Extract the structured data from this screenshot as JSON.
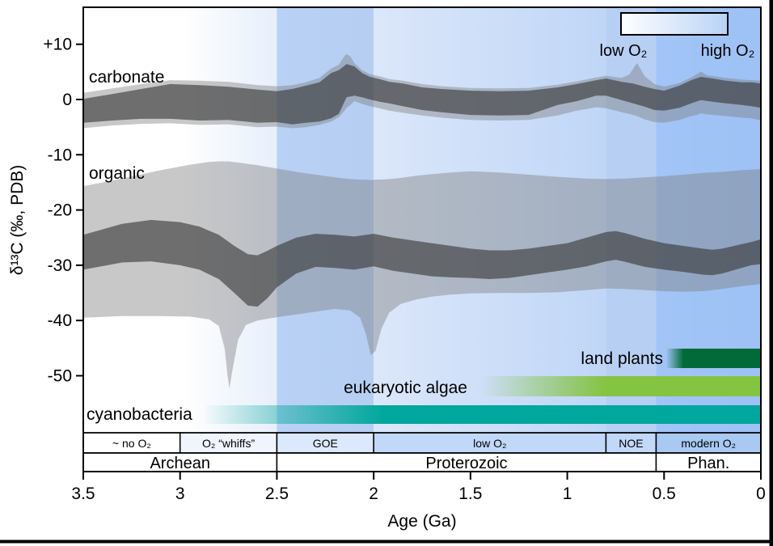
{
  "figure": {
    "y_axis_title": "δ¹³C (‰, PDB)",
    "x_axis_title": "Age (Ga)",
    "series_labels": {
      "carbonate": "carbonate",
      "organic": "organic"
    },
    "legend": {
      "low_label": "low O₂",
      "high_label": "high O₂",
      "gradient": [
        "#ffffff",
        "#b9d3f6"
      ]
    }
  },
  "colors": {
    "envelope_gray": "rgba(125,125,125,0.42)",
    "band_dark_gray": "rgba(55,55,55,0.62)",
    "frame": "#000000"
  },
  "chart_data": {
    "type": "area",
    "title": "",
    "xlabel": "Age (Ga)",
    "ylabel": "δ¹³C (‰, PDB)",
    "xlim": [
      3.5,
      0
    ],
    "ylim": [
      -67,
      17
    ],
    "grid": false,
    "x_ticks": [
      {
        "v": 3.5,
        "label": "3.5"
      },
      {
        "v": 3.0,
        "label": "3"
      },
      {
        "v": 2.5,
        "label": "2.5"
      },
      {
        "v": 2.0,
        "label": "2"
      },
      {
        "v": 1.5,
        "label": "1.5"
      },
      {
        "v": 1.0,
        "label": "1"
      },
      {
        "v": 0.5,
        "label": "0.5"
      },
      {
        "v": 0.0,
        "label": "0"
      }
    ],
    "y_ticks": [
      {
        "v": 10,
        "label": "+10"
      },
      {
        "v": 0,
        "label": "0"
      },
      {
        "v": -10,
        "label": "-10"
      },
      {
        "v": -20,
        "label": "-20"
      },
      {
        "v": -30,
        "label": "-30"
      },
      {
        "v": -40,
        "label": "-40"
      },
      {
        "v": -50,
        "label": "-50"
      }
    ],
    "background_zones": [
      {
        "name": "archean-anoxic",
        "from": 3.5,
        "to": 3.0,
        "c1": "#ffffff",
        "c2": "#ffffff"
      },
      {
        "name": "whiffs-gradient",
        "from": 3.0,
        "to": 2.5,
        "c1": "#ffffff",
        "c2": "#e7effb"
      },
      {
        "name": "goe-stripe",
        "from": 2.5,
        "to": 2.0,
        "c1": "#b8d1f4",
        "c2": "#b5cef2"
      },
      {
        "name": "mid-proterozoic",
        "from": 2.0,
        "to": 0.8,
        "c1": "#dbe7fa",
        "c2": "#c0d6f7"
      },
      {
        "name": "noe-stripe",
        "from": 0.8,
        "to": 0.541,
        "c1": "#b6cff3",
        "c2": "#b6cff3"
      },
      {
        "name": "phanerozoic",
        "from": 0.541,
        "to": 0,
        "c1": "#a2c4f6",
        "c2": "#9ec2f5"
      }
    ],
    "bands": [
      {
        "id": "carbonate-envelope",
        "role": "envelope",
        "series": "carbonate",
        "ages": [
          3.5,
          3.35,
          3.2,
          3.05,
          2.9,
          2.75,
          2.6,
          2.5,
          2.42,
          2.35,
          2.28,
          2.22,
          2.18,
          2.15,
          2.14,
          2.12,
          2.1,
          2.06,
          2.02,
          1.97,
          1.92,
          1.85,
          1.75,
          1.65,
          1.5,
          1.35,
          1.2,
          1.05,
          0.95,
          0.85,
          0.8,
          0.72,
          0.68,
          0.64,
          0.6,
          0.55,
          0.5,
          0.42,
          0.36,
          0.33,
          0.31,
          0.28,
          0.18,
          0.1,
          0.05,
          0
        ],
        "upper": [
          1.2,
          2.0,
          2.8,
          3.5,
          3.4,
          3.2,
          2.6,
          2.4,
          2.6,
          3.1,
          3.9,
          5.6,
          6.3,
          7.9,
          8.2,
          7.8,
          6.6,
          5.3,
          4.6,
          4.2,
          3.7,
          3.4,
          2.8,
          2.4,
          2.1,
          2.0,
          2.1,
          2.7,
          3.3,
          4.0,
          4.3,
          3.9,
          4.5,
          6.6,
          4.2,
          2.8,
          2.3,
          3.0,
          4.0,
          4.6,
          5.1,
          4.4,
          3.9,
          3.6,
          3.5,
          3.4
        ],
        "lower": [
          -5.2,
          -4.7,
          -4.4,
          -4.3,
          -4.6,
          -4.5,
          -5.0,
          -4.9,
          -5.2,
          -5.0,
          -4.6,
          -4.0,
          -3.2,
          -2.0,
          -1.5,
          -1.0,
          -0.3,
          -0.8,
          -1.2,
          -1.6,
          -2.0,
          -2.4,
          -2.9,
          -3.3,
          -3.7,
          -3.8,
          -3.7,
          -2.9,
          -2.0,
          -1.4,
          -1.6,
          -2.3,
          -2.6,
          -3.0,
          -3.6,
          -4.1,
          -4.2,
          -3.7,
          -3.0,
          -2.8,
          -2.5,
          -2.7,
          -3.0,
          -3.3,
          -3.4,
          -3.8
        ]
      },
      {
        "id": "carbonate-band",
        "role": "dark-band",
        "series": "carbonate",
        "ages": [
          3.5,
          3.35,
          3.2,
          3.05,
          2.9,
          2.75,
          2.6,
          2.5,
          2.42,
          2.35,
          2.28,
          2.22,
          2.18,
          2.14,
          2.1,
          2.06,
          2.02,
          1.97,
          1.92,
          1.85,
          1.75,
          1.65,
          1.5,
          1.35,
          1.2,
          1.05,
          0.95,
          0.85,
          0.8,
          0.72,
          0.66,
          0.6,
          0.55,
          0.5,
          0.42,
          0.36,
          0.31,
          0.25,
          0.18,
          0.1,
          0.05,
          0
        ],
        "upper": [
          0.1,
          1.0,
          1.9,
          2.8,
          2.6,
          2.3,
          1.8,
          1.5,
          1.9,
          2.5,
          3.1,
          4.8,
          5.3,
          6.4,
          6.0,
          4.8,
          4.1,
          3.7,
          3.2,
          2.9,
          2.2,
          1.9,
          1.6,
          1.5,
          1.6,
          2.2,
          2.8,
          3.5,
          3.8,
          3.2,
          2.9,
          2.3,
          1.9,
          1.6,
          2.5,
          3.5,
          4.1,
          3.8,
          3.4,
          3.1,
          3.1,
          2.9
        ],
        "lower": [
          -4.2,
          -3.8,
          -3.5,
          -3.5,
          -3.8,
          -3.7,
          -4.2,
          -4.1,
          -4.5,
          -4.2,
          -4.0,
          -3.4,
          -2.6,
          0.4,
          0.7,
          0.4,
          0.0,
          -0.4,
          -0.7,
          -1.2,
          -1.9,
          -2.3,
          -2.8,
          -2.9,
          -2.8,
          -1.0,
          -0.3,
          0.7,
          0.7,
          -0.1,
          -0.7,
          -1.3,
          -1.9,
          -2.0,
          -1.5,
          -0.7,
          -0.1,
          -0.4,
          -0.7,
          -1.0,
          -1.2,
          -1.5
        ]
      },
      {
        "id": "organic-envelope",
        "role": "envelope",
        "series": "organic",
        "ages": [
          3.5,
          3.3,
          3.1,
          2.95,
          2.85,
          2.8,
          2.77,
          2.755,
          2.745,
          2.73,
          2.7,
          2.66,
          2.6,
          2.5,
          2.4,
          2.3,
          2.2,
          2.12,
          2.07,
          2.04,
          2.015,
          1.99,
          1.96,
          1.92,
          1.86,
          1.78,
          1.7,
          1.6,
          1.5,
          1.35,
          1.2,
          1.05,
          0.9,
          0.8,
          0.7,
          0.6,
          0.5,
          0.4,
          0.3,
          0.2,
          0.1,
          0
        ],
        "upper": [
          -15.7,
          -14.3,
          -12.8,
          -11.8,
          -11.3,
          -11.2,
          -11.2,
          -11.2,
          -11.2,
          -11.3,
          -11.4,
          -11.6,
          -11.9,
          -12.5,
          -13.1,
          -13.6,
          -14.1,
          -14.4,
          -14.5,
          -14.5,
          -14.6,
          -14.5,
          -14.5,
          -14.4,
          -14.2,
          -13.8,
          -13.5,
          -13.2,
          -13.0,
          -13.2,
          -13.6,
          -14.0,
          -14.3,
          -14.4,
          -14.3,
          -14.1,
          -13.9,
          -13.6,
          -13.3,
          -13.1,
          -12.8,
          -12.6
        ],
        "lower": [
          -39.5,
          -39.2,
          -39.2,
          -39.3,
          -39.8,
          -41.0,
          -45.0,
          -50.0,
          -52.3,
          -49.0,
          -43.5,
          -40.8,
          -40.0,
          -39.4,
          -38.9,
          -38.4,
          -37.9,
          -38.2,
          -39.5,
          -42.5,
          -46.3,
          -45.5,
          -41.5,
          -38.6,
          -37.0,
          -36.2,
          -35.7,
          -35.3,
          -35.1,
          -35.0,
          -35.0,
          -34.9,
          -34.5,
          -34.2,
          -34.3,
          -34.5,
          -34.7,
          -34.8,
          -34.7,
          -34.3,
          -33.8,
          -33.4
        ]
      },
      {
        "id": "organic-band",
        "role": "dark-band",
        "series": "organic",
        "ages": [
          3.5,
          3.3,
          3.15,
          3.0,
          2.9,
          2.8,
          2.72,
          2.65,
          2.6,
          2.55,
          2.5,
          2.4,
          2.3,
          2.2,
          2.1,
          2.0,
          1.9,
          1.8,
          1.7,
          1.6,
          1.5,
          1.4,
          1.3,
          1.2,
          1.1,
          1.0,
          0.9,
          0.8,
          0.75,
          0.7,
          0.6,
          0.5,
          0.4,
          0.3,
          0.25,
          0.2,
          0.1,
          0.05,
          0
        ],
        "upper": [
          -24.5,
          -22.5,
          -21.8,
          -22.2,
          -23.0,
          -24.5,
          -26.5,
          -28.0,
          -28.2,
          -27.4,
          -26.5,
          -25.0,
          -24.3,
          -24.5,
          -24.8,
          -24.3,
          -25.0,
          -25.5,
          -26.0,
          -26.5,
          -27.0,
          -27.3,
          -27.3,
          -27.0,
          -26.5,
          -26.0,
          -25.0,
          -24.0,
          -23.8,
          -24.2,
          -25.2,
          -26.0,
          -26.5,
          -27.0,
          -27.2,
          -27.0,
          -26.2,
          -25.8,
          -25.3
        ],
        "lower": [
          -30.8,
          -29.5,
          -29.3,
          -30.0,
          -30.8,
          -32.5,
          -35.0,
          -37.3,
          -37.5,
          -36.0,
          -34.0,
          -31.5,
          -30.3,
          -30.5,
          -30.8,
          -30.2,
          -31.0,
          -31.5,
          -32.0,
          -32.2,
          -32.3,
          -32.5,
          -32.3,
          -31.8,
          -31.3,
          -30.8,
          -30.2,
          -29.3,
          -29.0,
          -29.4,
          -30.3,
          -30.8,
          -31.2,
          -31.7,
          -31.8,
          -31.5,
          -30.5,
          -30.0,
          -29.8
        ]
      }
    ],
    "bio_bars": [
      {
        "id": "cyanobacteria",
        "label": "cyanobacteria",
        "color": "#00a79c",
        "fade_start": 2.88,
        "solid": 1.95,
        "end": 0
      },
      {
        "id": "eukaryotic-algae",
        "label": "eukaryotic algae",
        "color": "#85c441",
        "fade_start": 1.45,
        "solid": 0.8,
        "end": 0
      },
      {
        "id": "land-plants",
        "label": "land plants",
        "color": "#016a38",
        "fade_start": 0.49,
        "solid": 0.4,
        "end": 0
      }
    ],
    "o2_state_row": [
      {
        "label": "~ no O₂",
        "from": 3.5,
        "to": 3.0,
        "color": "#ffffff"
      },
      {
        "label": "O₂ “whiffs”",
        "from": 3.0,
        "to": 2.5,
        "color": "#eff4fd"
      },
      {
        "label": "GOE",
        "from": 2.5,
        "to": 2.0,
        "color": "#dce8fb"
      },
      {
        "label": "low O₂",
        "from": 2.0,
        "to": 0.8,
        "color": "#c2d8f8"
      },
      {
        "label": "NOE",
        "from": 0.8,
        "to": 0.541,
        "color": "#c2d8f8"
      },
      {
        "label": "modern O₂",
        "from": 0.541,
        "to": 0,
        "color": "#a9c9f3"
      }
    ],
    "era_row": [
      {
        "label": "Archean",
        "from": 3.5,
        "to": 2.5,
        "color": "#ffffff"
      },
      {
        "label": "Proterozoic",
        "from": 2.5,
        "to": 0.541,
        "color": "#ffffff"
      },
      {
        "label": "Phan.",
        "from": 0.541,
        "to": 0,
        "color": "#ffffff"
      }
    ]
  }
}
